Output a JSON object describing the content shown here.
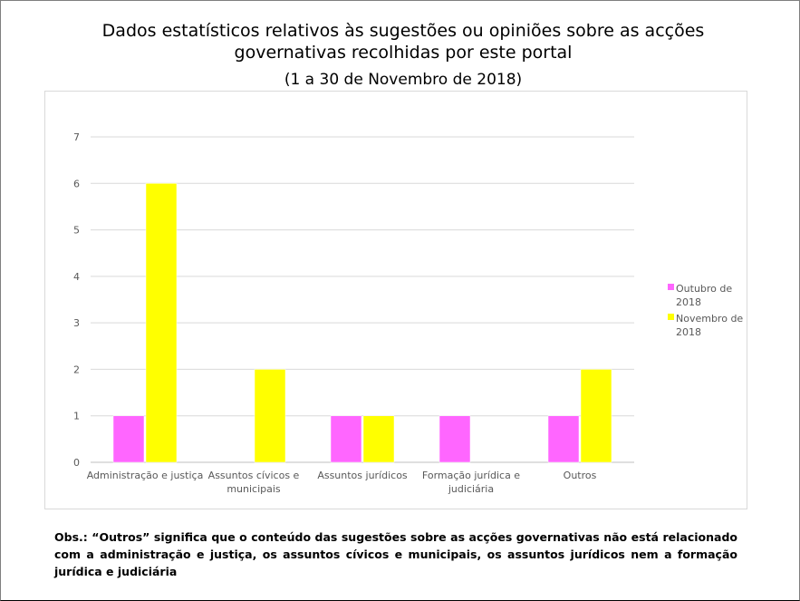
{
  "title": "Dados estatísticos relativos às sugestões ou opiniões sobre as acções governativas recolhidas por este portal",
  "subtitle": "(1 a 30 de Novembro de 2018)",
  "note": "Obs.: “Outros” significa que o conteúdo das sugestões sobre as acções governativas não está relacionado com a administração e justiça, os assuntos cívicos e municipais, os assuntos jurídicos nem a formação jurídica e judiciária",
  "chart_data": {
    "type": "bar",
    "categories": [
      [
        "Administração e justiça"
      ],
      [
        "Assuntos cívicos e",
        "municipais"
      ],
      [
        "Assuntos jurídicos"
      ],
      [
        "Formação jurídica e",
        "judiciária"
      ],
      [
        "Outros"
      ]
    ],
    "series": [
      {
        "name": "Outubro de 2018",
        "name_lines": [
          "Outubro de",
          "2018"
        ],
        "color": "#ff66ff",
        "values": [
          1,
          0,
          1,
          1,
          1
        ]
      },
      {
        "name": "Novembro de 2018",
        "name_lines": [
          "Novembro de",
          "2018"
        ],
        "color": "#ffff00",
        "values": [
          6,
          2,
          1,
          0,
          2
        ]
      }
    ],
    "ylim": [
      0,
      7
    ],
    "yticks": [
      0,
      1,
      2,
      3,
      4,
      5,
      6,
      7
    ],
    "grid": true,
    "legend": "right"
  }
}
